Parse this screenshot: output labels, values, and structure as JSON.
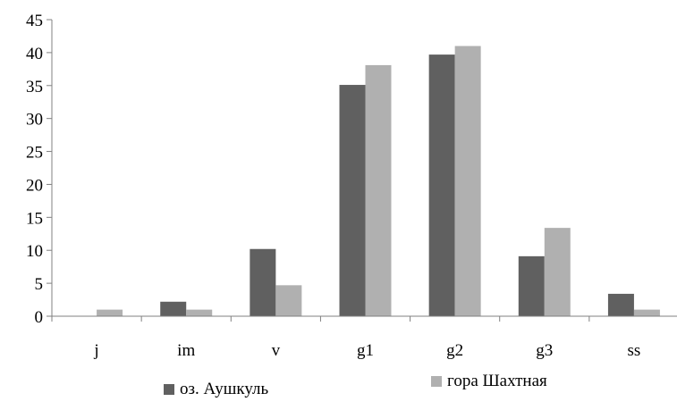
{
  "chart_data": {
    "type": "bar",
    "title": "",
    "xlabel": "",
    "ylabel": "",
    "categories": [
      "j",
      "im",
      "v",
      "g1",
      "g2",
      "g3",
      "ss"
    ],
    "ylim": [
      0,
      45
    ],
    "yticks": [
      0,
      5,
      10,
      15,
      20,
      25,
      30,
      35,
      40,
      45
    ],
    "grid": false,
    "legend_position": "bottom",
    "series": [
      {
        "name": "оз. Аушкуль",
        "color": "#606060",
        "values": [
          0,
          2.2,
          10.2,
          35.1,
          39.7,
          9.1,
          3.4
        ]
      },
      {
        "name": "гора Шахтная",
        "color": "#b0b0b0",
        "values": [
          1.0,
          1.0,
          4.7,
          38.1,
          41.0,
          13.4,
          1.0
        ]
      }
    ]
  }
}
